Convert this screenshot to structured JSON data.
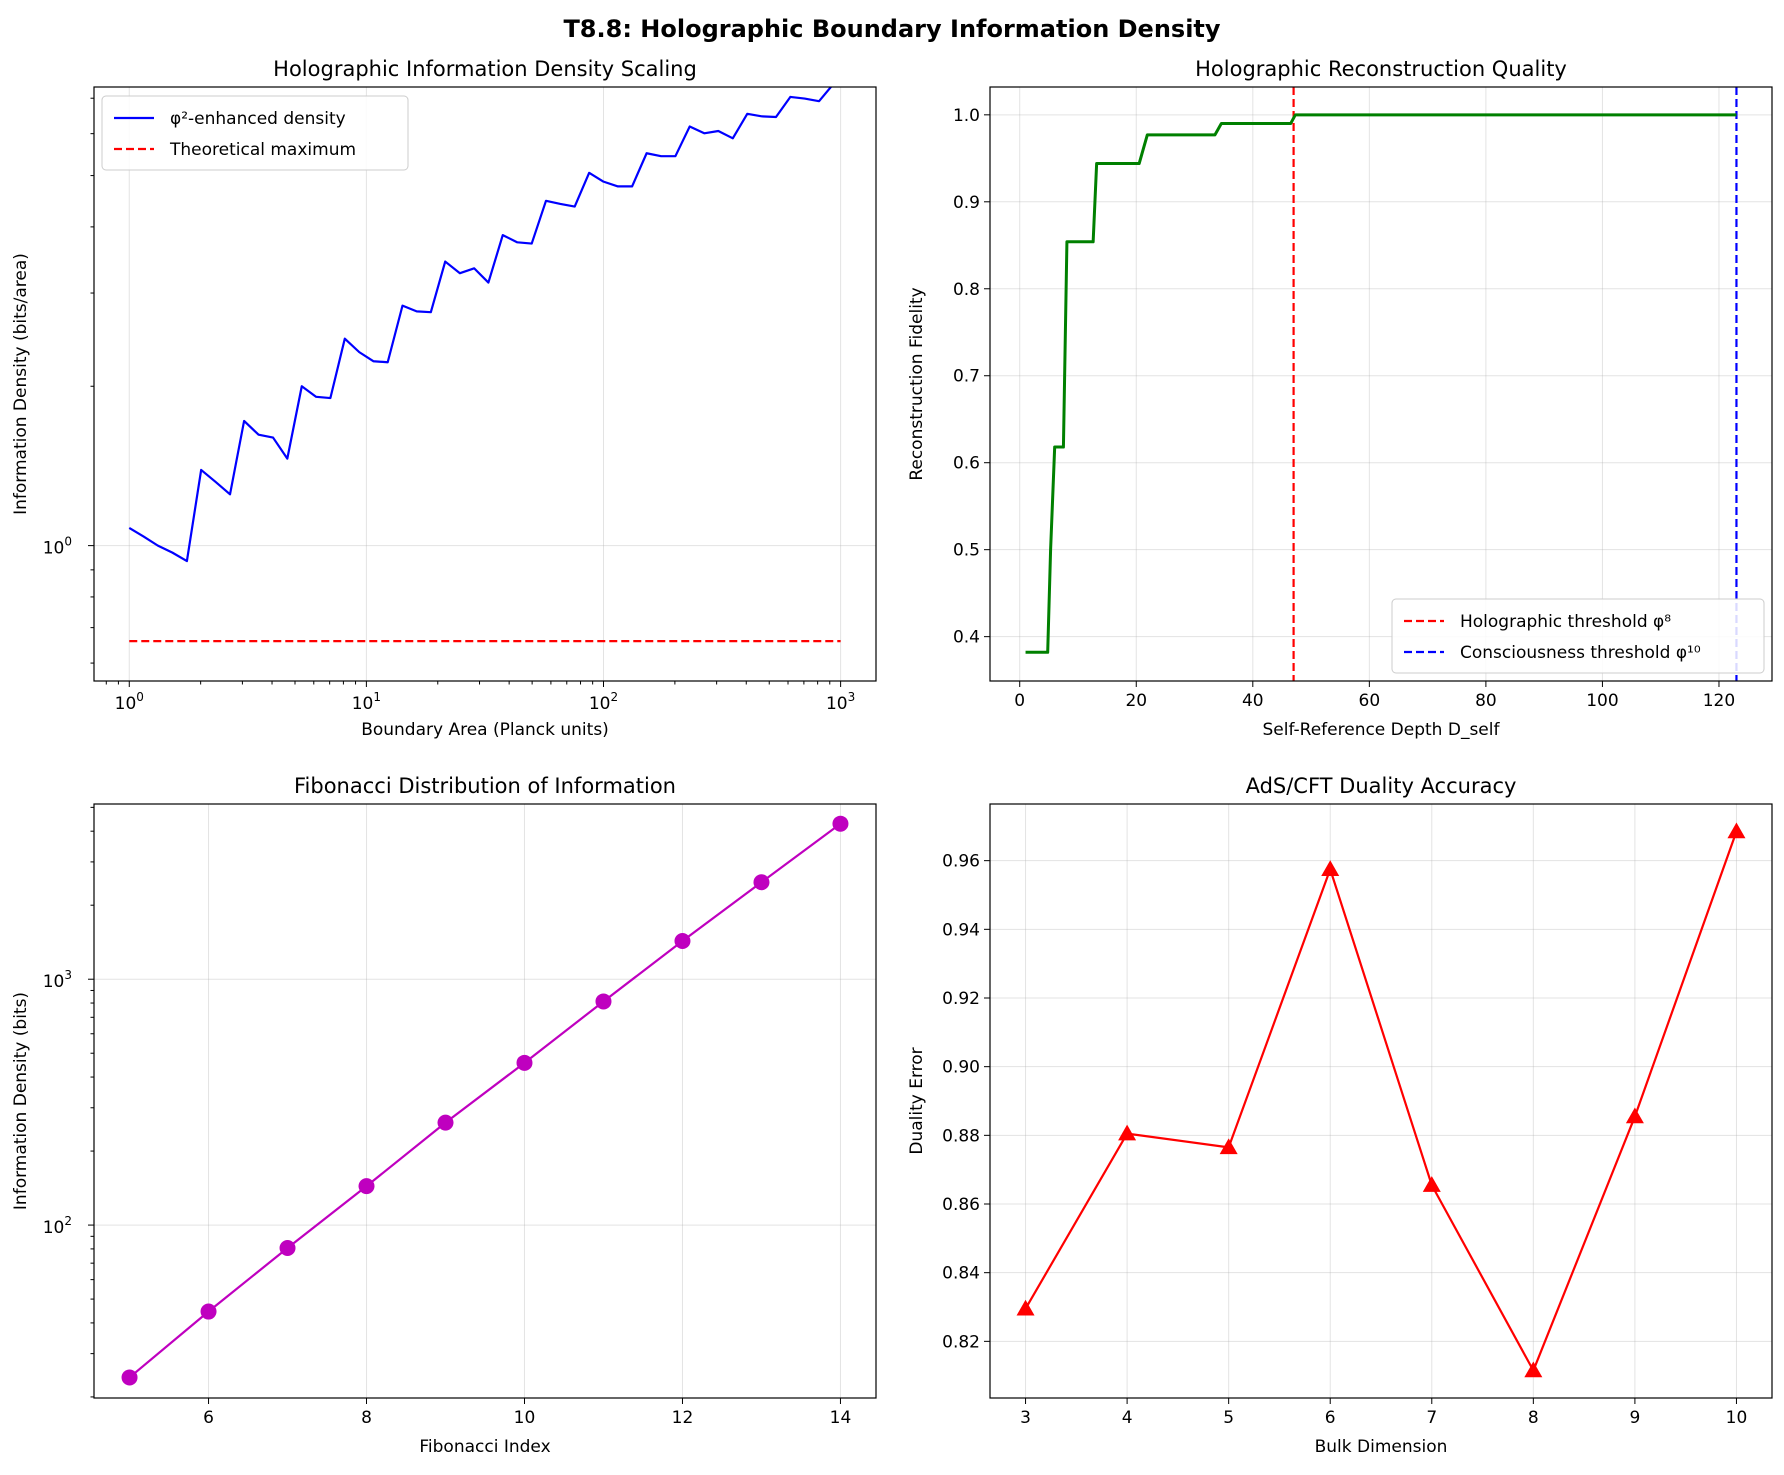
{
  "figure": {
    "suptitle": "T8.8: Holographic Boundary Information Density"
  },
  "chart_data": [
    {
      "id": "p1",
      "type": "line",
      "title": "Holographic Information Density Scaling",
      "xlabel": "Boundary Area (Planck units)",
      "ylabel": "Information Density (bits/area)",
      "xscale": "log",
      "yscale": "log",
      "xlim": [
        0.71,
        1410
      ],
      "ylim": [
        0.555,
        7.35
      ],
      "xticks": [
        {
          "v": 1,
          "base": "10",
          "exp": "0"
        },
        {
          "v": 10,
          "base": "10",
          "exp": "1"
        },
        {
          "v": 100,
          "base": "10",
          "exp": "2"
        },
        {
          "v": 1000,
          "base": "10",
          "exp": "3"
        }
      ],
      "yticks": [
        {
          "v": 1,
          "base": "10",
          "exp": "0"
        }
      ],
      "grid": true,
      "legend": "upper-left",
      "series": [
        {
          "name": "φ²-enhanced density",
          "color": "#0000ff",
          "style": "solid",
          "x": [
            1.0,
            1.15,
            1.32,
            1.52,
            1.75,
            2.01,
            2.31,
            2.66,
            3.05,
            3.51,
            4.04,
            4.64,
            5.34,
            6.14,
            7.05,
            8.11,
            9.33,
            10.7,
            12.3,
            14.2,
            16.3,
            18.7,
            21.5,
            24.8,
            28.5,
            32.7,
            37.6,
            43.3,
            49.8,
            57.2,
            65.8,
            75.6,
            87.0,
            100,
            115,
            132,
            152,
            175,
            201,
            231,
            266,
            305,
            351,
            404,
            464,
            534,
            614,
            705,
            811,
            933,
            1000
          ],
          "y": [
            1.08,
            1.04,
            1.0,
            0.97,
            0.935,
            1.39,
            1.32,
            1.25,
            1.72,
            1.62,
            1.6,
            1.46,
            2.0,
            1.91,
            1.9,
            2.46,
            2.32,
            2.23,
            2.22,
            2.84,
            2.77,
            2.76,
            3.44,
            3.27,
            3.34,
            3.14,
            3.86,
            3.74,
            3.72,
            4.48,
            4.42,
            4.37,
            5.06,
            4.87,
            4.77,
            4.77,
            5.51,
            5.44,
            5.44,
            6.19,
            6.01,
            6.07,
            5.88,
            6.54,
            6.47,
            6.45,
            7.04,
            6.99,
            6.91,
            7.45,
            7.55
          ]
        },
        {
          "name": "Theoretical maximum",
          "color": "#ff0000",
          "style": "dashed",
          "x": [
            1,
            1000
          ],
          "y": [
            0.66,
            0.66
          ]
        }
      ]
    },
    {
      "id": "p2",
      "type": "line",
      "title": "Holographic Reconstruction Quality",
      "xlabel": "Self-Reference Depth D_self",
      "ylabel": "Reconstruction Fidelity",
      "xscale": "linear",
      "yscale": "linear",
      "xlim": [
        -5.1,
        129.1
      ],
      "ylim": [
        0.349,
        1.032
      ],
      "xticks": [
        0,
        20,
        40,
        60,
        80,
        100,
        120
      ],
      "yticks": [
        0.4,
        0.5,
        0.6,
        0.7,
        0.8,
        0.9,
        1.0
      ],
      "ytick_labels": [
        "0.4",
        "0.5",
        "0.6",
        "0.7",
        "0.8",
        "0.9",
        "1.0"
      ],
      "grid": true,
      "legend": "lower-right",
      "series": [
        {
          "name": "",
          "color": "#008000",
          "style": "solid",
          "x": [
            1,
            4.8,
            5.3,
            6,
            7.5,
            8.1,
            12.6,
            13.2,
            20.5,
            21.9,
            33.5,
            34.6,
            46.5,
            47.3,
            123
          ],
          "y": [
            0.382,
            0.382,
            0.5,
            0.618,
            0.618,
            0.854,
            0.854,
            0.944,
            0.944,
            0.977,
            0.977,
            0.99,
            0.99,
            1.0,
            1.0
          ]
        }
      ],
      "vlines": [
        {
          "name": "Holographic threshold φ⁸",
          "x": 47,
          "color": "#ff0000"
        },
        {
          "name": "Consciousness threshold φ¹⁰",
          "x": 123,
          "color": "#0000ff"
        }
      ]
    },
    {
      "id": "p3",
      "type": "line",
      "title": "Fibonacci Distribution of Information",
      "xlabel": "Fibonacci Index",
      "ylabel": "Information Density (bits)",
      "xscale": "linear",
      "yscale": "log",
      "xlim": [
        4.55,
        14.45
      ],
      "ylim": [
        19.8,
        5160
      ],
      "xticks": [
        6,
        8,
        10,
        12,
        14
      ],
      "yticks": [
        {
          "v": 100,
          "base": "10",
          "exp": "2"
        },
        {
          "v": 1000,
          "base": "10",
          "exp": "3"
        }
      ],
      "grid": true,
      "legend": "none",
      "series": [
        {
          "name": "",
          "color": "#bf00bf",
          "style": "solid",
          "marker": "circle",
          "x": [
            5,
            6,
            7,
            8,
            9,
            10,
            11,
            12,
            13,
            14
          ],
          "y": [
            24,
            44.5,
            80.7,
            144,
            261,
            457,
            812,
            1430,
            2480,
            4290
          ]
        }
      ]
    },
    {
      "id": "p4",
      "type": "line",
      "title": "AdS/CFT Duality Accuracy",
      "xlabel": "Bulk Dimension",
      "ylabel": "Duality Error",
      "xscale": "linear",
      "yscale": "linear",
      "xlim": [
        2.65,
        10.35
      ],
      "ylim": [
        0.8035,
        0.9765
      ],
      "xticks": [
        3,
        4,
        5,
        6,
        7,
        8,
        9,
        10
      ],
      "yticks": [
        0.82,
        0.84,
        0.86,
        0.88,
        0.9,
        0.92,
        0.94,
        0.96
      ],
      "ytick_labels": [
        "0.82",
        "0.84",
        "0.86",
        "0.88",
        "0.90",
        "0.92",
        "0.94",
        "0.96"
      ],
      "grid": true,
      "legend": "none",
      "series": [
        {
          "name": "",
          "color": "#ff0000",
          "style": "solid",
          "marker": "triangle",
          "x": [
            3,
            4,
            5,
            6,
            7,
            8,
            9,
            10
          ],
          "y": [
            0.8295,
            0.8805,
            0.8765,
            0.9575,
            0.8655,
            0.8115,
            0.8855,
            0.9685
          ]
        }
      ]
    }
  ]
}
